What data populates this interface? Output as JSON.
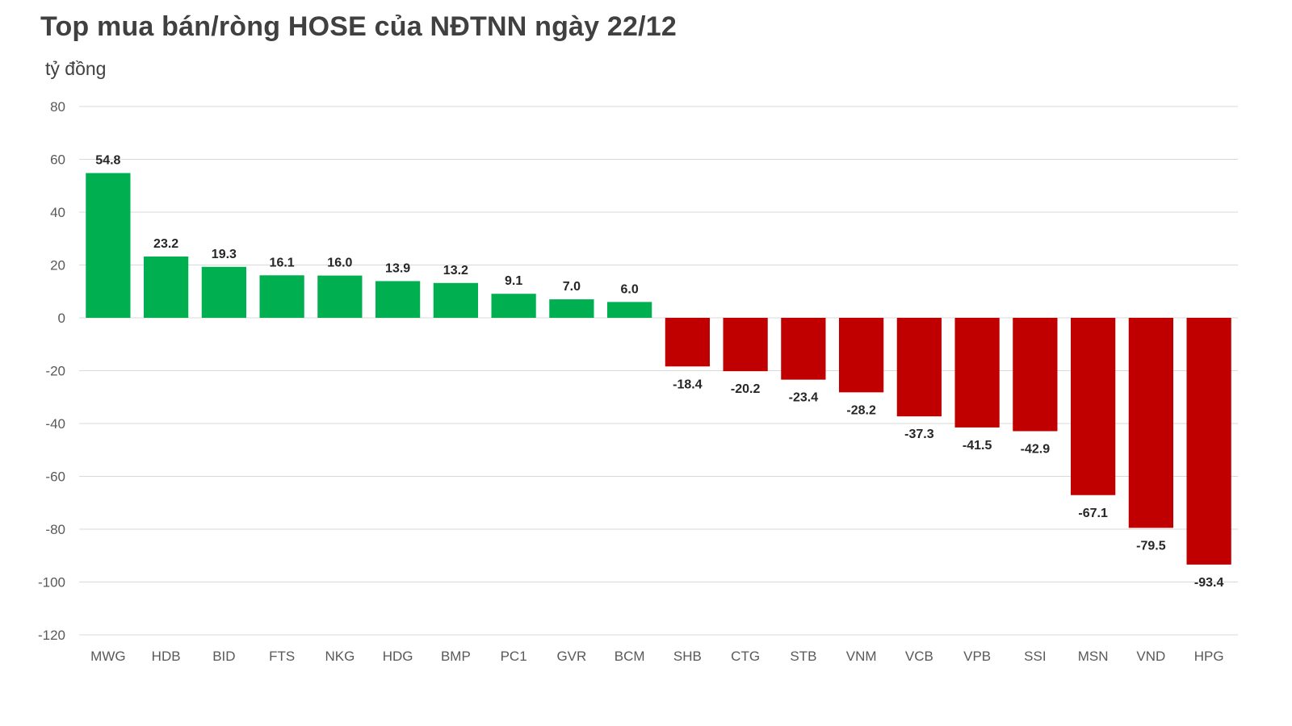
{
  "chart_data": {
    "type": "bar",
    "title": "Top mua bán/ròng HOSE của NĐTNN ngày 22/12",
    "ylabel": "tỷ đồng",
    "xlabel": "",
    "categories": [
      "MWG",
      "HDB",
      "BID",
      "FTS",
      "NKG",
      "HDG",
      "BMP",
      "PC1",
      "GVR",
      "BCM",
      "SHB",
      "CTG",
      "STB",
      "VNM",
      "VCB",
      "VPB",
      "SSI",
      "MSN",
      "VND",
      "HPG"
    ],
    "values": [
      54.8,
      23.2,
      19.3,
      16.1,
      16.0,
      13.9,
      13.2,
      9.1,
      7.0,
      6.0,
      -18.4,
      -20.2,
      -23.4,
      -28.2,
      -37.3,
      -41.5,
      -42.9,
      -67.1,
      -79.5,
      -93.4
    ],
    "value_labels": [
      "54.8",
      "23.2",
      "19.3",
      "16.1",
      "16.0",
      "13.9",
      "13.2",
      "9.1",
      "7.0",
      "6.0",
      "-18.4",
      "-20.2",
      "-23.4",
      "-28.2",
      "-37.3",
      "-41.5",
      "-42.9",
      "-67.1",
      "-79.5",
      "-93.4"
    ],
    "ylim": [
      -120,
      80
    ],
    "yticks": [
      80,
      60,
      40,
      20,
      0,
      -20,
      -40,
      -60,
      -80,
      -100,
      -120
    ],
    "grid": true,
    "colors": {
      "positive": "#00b050",
      "negative": "#c00000"
    }
  }
}
